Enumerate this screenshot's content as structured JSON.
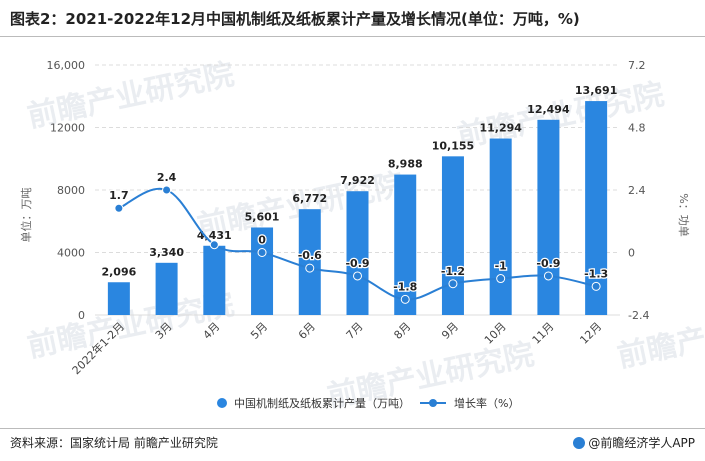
{
  "title": "图表2：2021-2022年12月中国机制纸及纸板累计产量及增长情况(单位：万吨，%)",
  "source": "资料来源：国家统计局 前瞻产业研究院",
  "brand": "@前瞻经济学人APP",
  "watermark": "前瞻产业研究院",
  "colors": {
    "bar": "#2a86e0",
    "line": "#2a7fd4",
    "grid": "#dcdcdc"
  },
  "chart_data": {
    "type": "bar",
    "categories": [
      "2022年1-2月",
      "3月",
      "4月",
      "5月",
      "6月",
      "7月",
      "8月",
      "9月",
      "10月",
      "11月",
      "12月"
    ],
    "series": [
      {
        "name": "中国机制纸及纸板累计产量（万吨）",
        "type": "bar",
        "axis": "left",
        "values": [
          2096,
          3340,
          4431,
          5601,
          6772,
          7922,
          8988,
          10155,
          11294,
          12494,
          13691
        ],
        "labels": [
          "2,096",
          "3,340",
          "4,431",
          "5,601",
          "6,772",
          "7,922",
          "8,988",
          "10,155",
          "11,294",
          "12,494",
          "13,691"
        ]
      },
      {
        "name": "增长率（%）",
        "type": "line",
        "axis": "right",
        "values": [
          1.7,
          2.4,
          0.3,
          0,
          -0.6,
          -0.9,
          -1.8,
          -1.2,
          -1,
          -0.9,
          -1.3
        ],
        "labels": [
          "1.7",
          "2.4",
          "",
          "0",
          "-0.6",
          "-0.9",
          "-1.8",
          "-1.2",
          "-1",
          "-0.9",
          "-1.3"
        ]
      }
    ],
    "ylabel": "单位：万吨",
    "y2label": "%：功单",
    "ylim": [
      0,
      16000
    ],
    "yticks": [
      0,
      4000,
      8000,
      12000,
      16000
    ],
    "ytick_labels": [
      "0",
      "4000",
      "8000",
      "12000",
      "16,000"
    ],
    "y2lim": [
      -2.4,
      7.2
    ],
    "y2ticks": [
      -2.4,
      0,
      2.4,
      4.8,
      7.2
    ],
    "y2tick_labels": [
      "-2.4",
      "0",
      "2.4",
      "4.8",
      "7.2"
    ],
    "grid": true,
    "legend_position": "bottom"
  }
}
